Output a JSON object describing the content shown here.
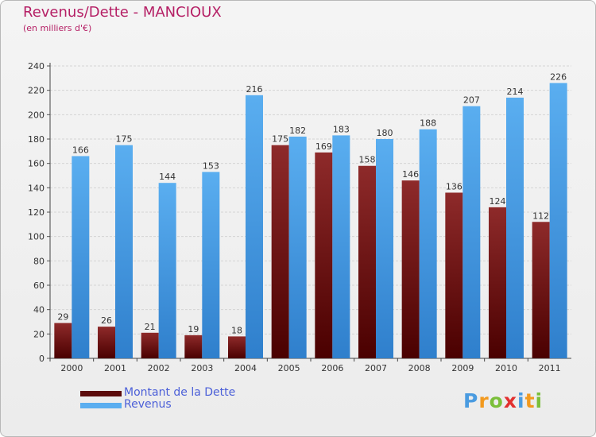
{
  "header": {
    "title": "Revenus/Dette - MANCIOUX",
    "subtitle": "(en milliers d'€)"
  },
  "legend": {
    "debt_label": "Montant de la Dette",
    "revenue_label": "Revenus"
  },
  "logo": {
    "text": "Proxiti",
    "letter_colors": [
      "#4a9be0",
      "#f29a1f",
      "#7bbf3a",
      "#e2302f",
      "#4a9be0",
      "#f29a1f",
      "#7bbf3a"
    ]
  },
  "colors": {
    "debt_top": "#8e2a2a",
    "debt_bottom": "#4a0000",
    "debt_swatch": "#5c0c0c",
    "revenue_top": "#5aaef0",
    "revenue_bottom": "#2f7fcc",
    "title": "#b51f65",
    "legend_text": "#4b5fd8",
    "grid": "#d4d4d4"
  },
  "chart_data": {
    "type": "bar",
    "title": "Revenus/Dette - MANCIOUX",
    "subtitle": "(en milliers d'€)",
    "xlabel": "",
    "ylabel": "",
    "ylim": [
      0,
      240
    ],
    "yticks": [
      0,
      20,
      40,
      60,
      80,
      100,
      120,
      140,
      160,
      180,
      200,
      220,
      240
    ],
    "grid": true,
    "legend_position": "bottom-left",
    "categories": [
      "2000",
      "2001",
      "2002",
      "2003",
      "2004",
      "2005",
      "2006",
      "2007",
      "2008",
      "2009",
      "2010",
      "2011"
    ],
    "series": [
      {
        "name": "Montant de la Dette",
        "values": [
          29,
          26,
          21,
          19,
          18,
          175,
          169,
          158,
          146,
          136,
          124,
          112
        ]
      },
      {
        "name": "Revenus",
        "values": [
          166,
          175,
          144,
          153,
          216,
          182,
          183,
          180,
          188,
          207,
          214,
          226
        ]
      }
    ]
  }
}
